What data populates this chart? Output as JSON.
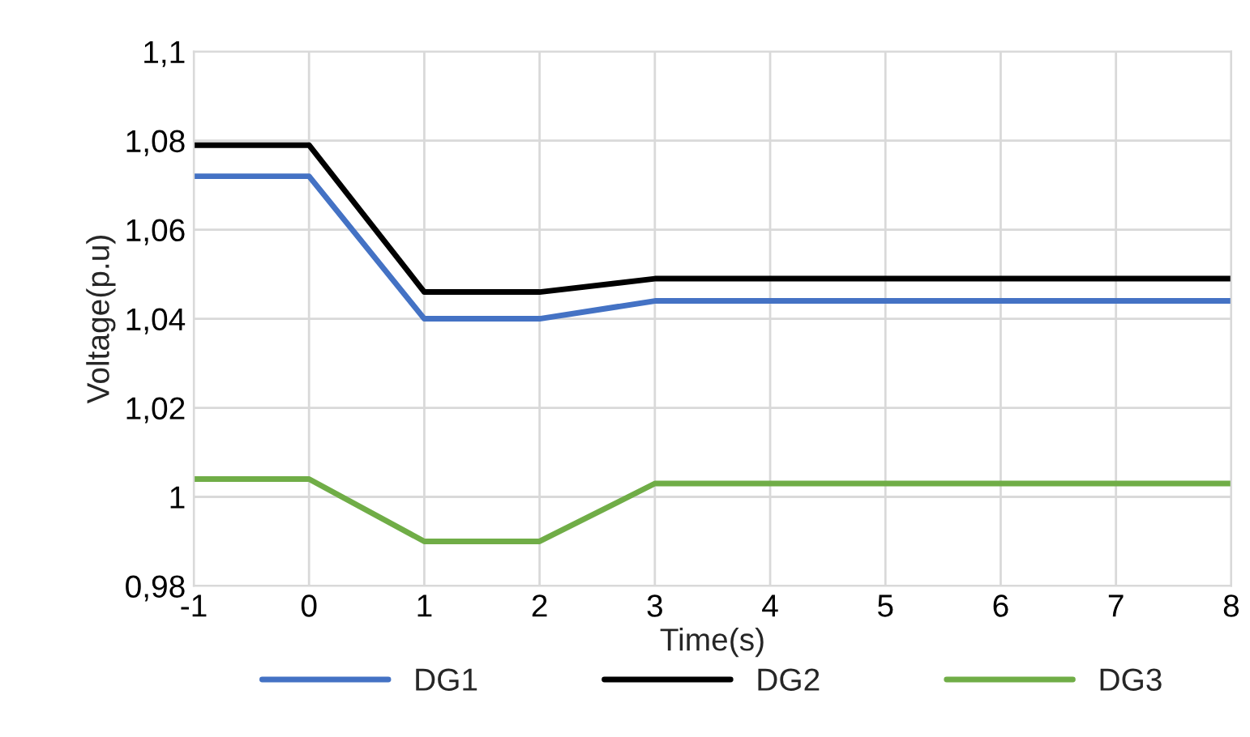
{
  "chart_data": {
    "type": "line",
    "xlabel": "Time(s)",
    "ylabel": "Voltage(p.u)",
    "x": [
      -1,
      0,
      1,
      2,
      3,
      4,
      5,
      6,
      7,
      8
    ],
    "series": [
      {
        "name": "DG1",
        "color": "#4472c4",
        "values": [
          1.072,
          1.072,
          1.04,
          1.04,
          1.044,
          1.044,
          1.044,
          1.044,
          1.044,
          1.044
        ]
      },
      {
        "name": "DG2",
        "color": "#000000",
        "values": [
          1.079,
          1.079,
          1.046,
          1.046,
          1.049,
          1.049,
          1.049,
          1.049,
          1.049,
          1.049
        ]
      },
      {
        "name": "DG3",
        "color": "#70ad47",
        "values": [
          1.004,
          1.004,
          0.99,
          0.99,
          1.003,
          1.003,
          1.003,
          1.003,
          1.003,
          1.003
        ]
      }
    ],
    "xlim": [
      -1,
      8
    ],
    "xticks": [
      -1,
      0,
      1,
      2,
      3,
      4,
      5,
      6,
      7,
      8
    ],
    "ylim": [
      0.98,
      1.1
    ],
    "yticks": [
      {
        "value": 0.98,
        "label": "0,98"
      },
      {
        "value": 1,
        "label": "1"
      },
      {
        "value": 1.02,
        "label": "1,02"
      },
      {
        "value": 1.04,
        "label": "1,04"
      },
      {
        "value": 1.06,
        "label": "1,06"
      },
      {
        "value": 1.08,
        "label": "1,08"
      },
      {
        "value": 1.1,
        "label": "1,1"
      }
    ],
    "grid": true,
    "legend": "bottom",
    "marker": "none",
    "line_style": "solid"
  }
}
